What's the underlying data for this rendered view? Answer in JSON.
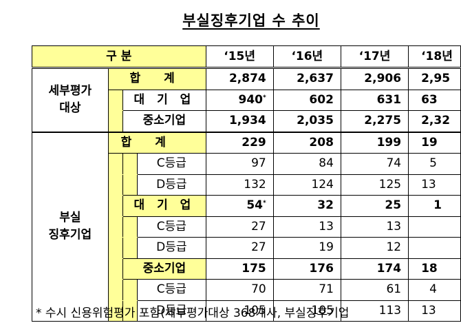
{
  "title": "부실징후기업 수 추이",
  "header": {
    "category": "구 분",
    "years": [
      "‘15년",
      "‘16년",
      "‘17년",
      "‘18년"
    ]
  },
  "sections": {
    "detailed": {
      "label_line1": "세부평가",
      "label_line2": "대상"
    },
    "distressed": {
      "label_line1": "부실",
      "label_line2": "징후기업"
    }
  },
  "rows": {
    "d_total": {
      "label": "합 계",
      "values": [
        "2,874",
        "2,637",
        "2,906",
        "2,95"
      ]
    },
    "d_large": {
      "label": "대 기 업",
      "values": [
        "940",
        "602",
        "631",
        "63"
      ],
      "mark": "*"
    },
    "d_sme": {
      "label": "중소기업",
      "values": [
        "1,934",
        "2,035",
        "2,275",
        "2,32"
      ]
    },
    "p_total": {
      "label": "합 계",
      "values": [
        "229",
        "208",
        "199",
        "19"
      ]
    },
    "p_total_c": {
      "label": "C등급",
      "values": [
        "97",
        "84",
        "74",
        "5"
      ]
    },
    "p_total_d": {
      "label": "D등급",
      "values": [
        "132",
        "124",
        "125",
        "13"
      ]
    },
    "p_large": {
      "label": "대 기 업",
      "values": [
        "54",
        "32",
        "25",
        "1"
      ],
      "mark": "*"
    },
    "p_large_c": {
      "label": "C등급",
      "values": [
        "27",
        "13",
        "13",
        ""
      ]
    },
    "p_large_d": {
      "label": "D등급",
      "values": [
        "27",
        "19",
        "12",
        ""
      ]
    },
    "p_sme": {
      "label": "중소기업",
      "values": [
        "175",
        "176",
        "174",
        "18"
      ]
    },
    "p_sme_c": {
      "label": "C등급",
      "values": [
        "70",
        "71",
        "61",
        "4"
      ]
    },
    "p_sme_d": {
      "label": "D등급",
      "values": [
        "105",
        "105",
        "113",
        "13"
      ]
    }
  },
  "footnote": "* 수시 신용위험평가 포함(세부평가대상 368개사, 부실징후기업",
  "colors": {
    "highlight": "#ffff99"
  }
}
